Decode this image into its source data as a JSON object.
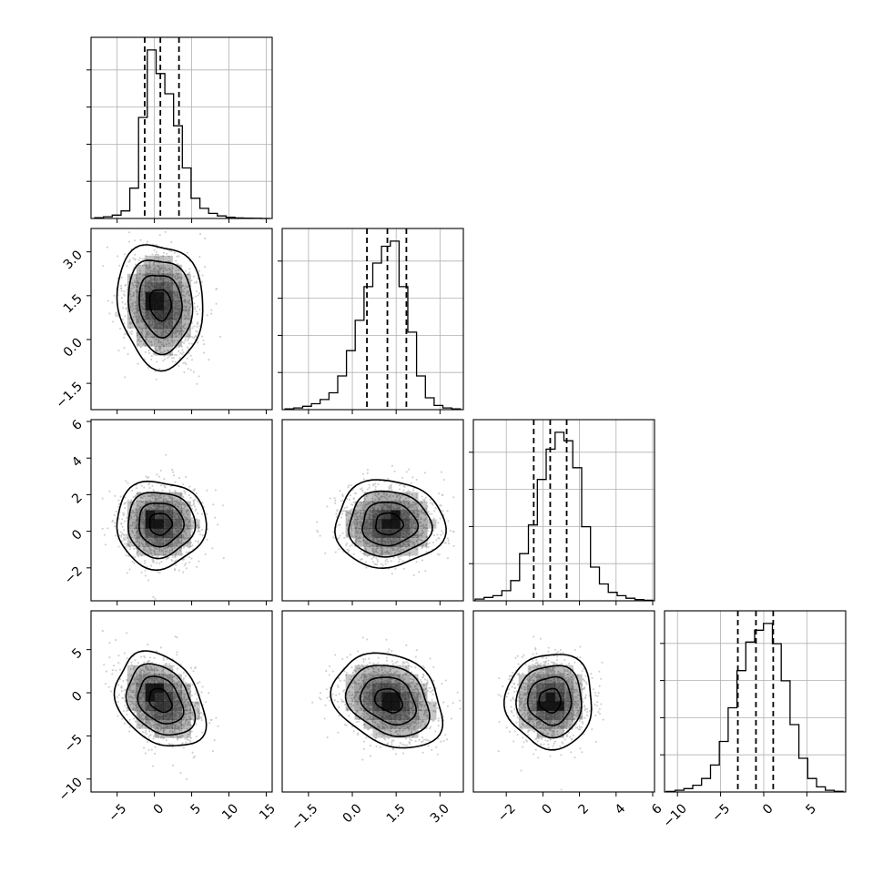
{
  "chart_data": {
    "type": "corner",
    "parameters": [
      {
        "range": [
          -8.5,
          15.8
        ],
        "ticks": [
          -5,
          0,
          5,
          10,
          15
        ],
        "tick_labels": [
          "−5",
          "0",
          "5",
          "10",
          "15"
        ],
        "quantiles": [
          -1.3,
          0.8,
          3.3
        ],
        "bins": [
          -8,
          15.5
        ],
        "grid": true
      },
      {
        "range": [
          -2.4,
          3.8
        ],
        "ticks": [
          -1.5,
          0.0,
          1.5,
          3.0
        ],
        "tick_labels": [
          "−1.5",
          "0.0",
          "1.5",
          "3.0"
        ],
        "quantiles": [
          0.5,
          1.2,
          1.85
        ],
        "bins": [
          -2.3,
          3.7
        ],
        "grid": true
      },
      {
        "range": [
          -3.8,
          6.1
        ],
        "ticks": [
          -2,
          0,
          2,
          4,
          6
        ],
        "tick_labels": [
          "−2",
          "0",
          "2",
          "4",
          "6"
        ],
        "quantiles": [
          -0.5,
          0.4,
          1.3
        ],
        "bins": [
          -3.7,
          6.0
        ],
        "grid": true
      },
      {
        "range": [
          -11.5,
          9.5
        ],
        "ticks": [
          -10,
          -5,
          0,
          5
        ],
        "tick_labels": [
          "−10",
          "−5",
          "0",
          "5"
        ],
        "quantiles": [
          -3.0,
          -0.9,
          1.1
        ],
        "bins": [
          -11.3,
          9.2
        ],
        "grid": true
      }
    ],
    "histograms": [
      [
        0.005,
        0.01,
        0.02,
        0.045,
        0.18,
        0.6,
        1.0,
        0.86,
        0.74,
        0.55,
        0.3,
        0.12,
        0.06,
        0.03,
        0.015,
        0.007,
        0.003,
        0.002,
        0.001,
        0.0
      ],
      [
        0.005,
        0.01,
        0.02,
        0.035,
        0.06,
        0.1,
        0.2,
        0.35,
        0.53,
        0.73,
        0.87,
        0.97,
        1.0,
        0.73,
        0.46,
        0.2,
        0.07,
        0.025,
        0.01,
        0.005
      ],
      [
        0.01,
        0.02,
        0.03,
        0.06,
        0.12,
        0.28,
        0.45,
        0.72,
        0.9,
        1.0,
        0.95,
        0.79,
        0.44,
        0.2,
        0.1,
        0.05,
        0.03,
        0.015,
        0.007,
        0.003
      ],
      [
        0.003,
        0.01,
        0.02,
        0.04,
        0.08,
        0.16,
        0.3,
        0.5,
        0.72,
        0.89,
        0.96,
        1.0,
        0.88,
        0.66,
        0.4,
        0.2,
        0.08,
        0.03,
        0.01,
        0.004
      ]
    ],
    "pairs": [
      {
        "row": 1,
        "col": 0,
        "center": [
          0.8,
          1.2
        ],
        "sd": [
          2.3,
          0.85
        ],
        "rho": -0.1,
        "peak": [
          -0.3,
          1.3
        ],
        "density_scale": 0.28
      },
      {
        "row": 2,
        "col": 0,
        "center": [
          0.8,
          0.4
        ],
        "sd": [
          2.4,
          0.95
        ],
        "rho": 0.0,
        "peak": [
          -0.4,
          0.5
        ],
        "density_scale": 0.28
      },
      {
        "row": 2,
        "col": 1,
        "center": [
          1.25,
          0.4
        ],
        "sd": [
          0.75,
          0.95
        ],
        "rho": 0.0,
        "peak": [
          1.4,
          0.5
        ],
        "density_scale": 0.34
      },
      {
        "row": 3,
        "col": 0,
        "center": [
          0.8,
          -0.9
        ],
        "sd": [
          2.4,
          2.2
        ],
        "rho": -0.3,
        "peak": [
          -0.4,
          0.4
        ],
        "density_scale": 0.26
      },
      {
        "row": 3,
        "col": 1,
        "center": [
          1.25,
          -0.9
        ],
        "sd": [
          0.75,
          2.2
        ],
        "rho": -0.25,
        "peak": [
          1.4,
          -1.1
        ],
        "density_scale": 0.3
      },
      {
        "row": 3,
        "col": 2,
        "center": [
          0.4,
          -0.9
        ],
        "sd": [
          0.95,
          2.2
        ],
        "rho": 0.0,
        "peak": [
          0.4,
          -1.2
        ],
        "density_scale": 0.3
      }
    ],
    "contour_levels_sigma": [
      0.5,
      1.0,
      1.5,
      2.0
    ],
    "tick_rotation_deg": 45,
    "colors": {
      "points": "#bdbdbd",
      "lines": "#000000",
      "grid": "#b0b0b0",
      "density_max": "#000000"
    }
  }
}
